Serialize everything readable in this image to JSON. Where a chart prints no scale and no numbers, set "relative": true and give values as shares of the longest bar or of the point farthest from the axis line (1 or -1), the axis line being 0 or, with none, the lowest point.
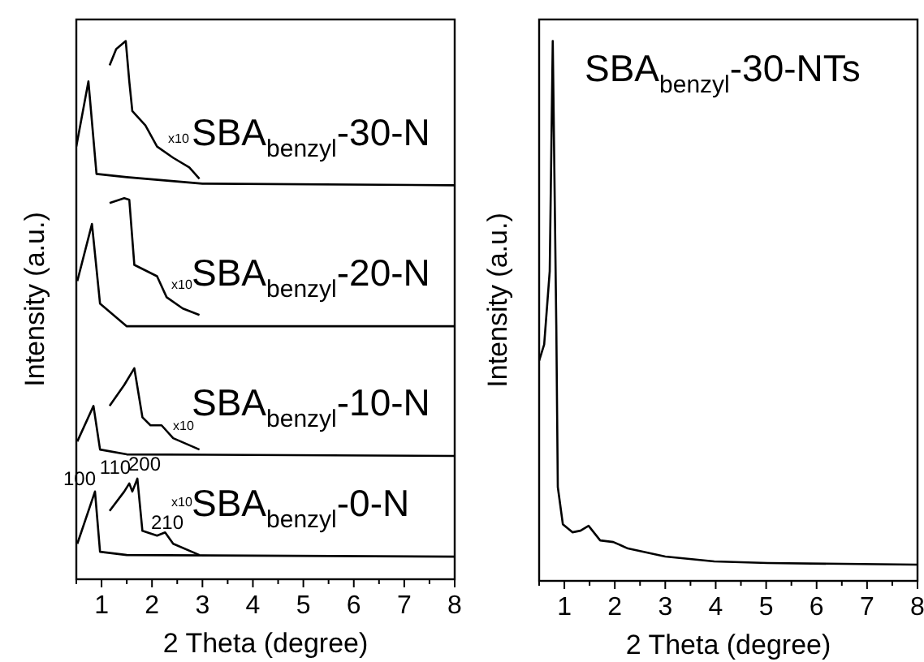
{
  "chart_data": [
    {
      "type": "line",
      "relative": true,
      "xlabel": "2 Theta (degree)",
      "ylabel": "Intensity (a.u.)",
      "xlim": [
        0.5,
        8
      ],
      "xticks": [
        {
          "value": 0.5,
          "label": null
        },
        1,
        {
          "value": 1.5,
          "label": null
        },
        2,
        {
          "value": 2.5,
          "label": null
        },
        3,
        {
          "value": 3.5,
          "label": null
        },
        4,
        {
          "value": 4.5,
          "label": null
        },
        5,
        {
          "value": 5.5,
          "label": null
        },
        6,
        {
          "value": 6.5,
          "label": null
        },
        7,
        {
          "value": 7.5,
          "label": null
        },
        8
      ],
      "tick_labels": "x",
      "legend": false,
      "grid": false,
      "marker": "none",
      "line_style": "solid",
      "series": [
        {
          "name": "SBA$_{benzyl}$-30-N",
          "color": "#000000",
          "x": [
            0.5,
            0.74,
            0.9,
            1.5,
            3,
            8
          ],
          "values": [
            0.804,
            0.925,
            0.753,
            0.747,
            0.735,
            0.732
          ]
        },
        {
          "color": "#000000",
          "x": [
            1.16,
            1.29,
            1.48,
            1.55,
            1.61,
            1.87,
            2.1,
            2.42,
            2.74,
            2.94
          ],
          "values": [
            0.955,
            0.985,
            1,
            0.925,
            0.87,
            0.843,
            0.804,
            0.783,
            0.765,
            0.744
          ]
        },
        {
          "name": "SBA$_{benzyl}$-20-N",
          "color": "#000000",
          "x": [
            0.52,
            0.81,
            0.97,
            1.5,
            8
          ],
          "values": [
            0.554,
            0.66,
            0.512,
            0.47,
            0.47
          ]
        },
        {
          "color": "#000000",
          "x": [
            1.16,
            1.45,
            1.55,
            1.65,
            2.1,
            2.29,
            2.61,
            2.94
          ],
          "values": [
            0.699,
            0.708,
            0.705,
            0.584,
            0.563,
            0.524,
            0.503,
            0.491
          ]
        },
        {
          "name": "SBA$_{benzyl}$-10-N",
          "color": "#000000",
          "x": [
            0.52,
            0.84,
            0.97,
            1.5,
            8
          ],
          "values": [
            0.256,
            0.322,
            0.241,
            0.232,
            0.229
          ]
        },
        {
          "color": "#000000",
          "x": [
            1.16,
            1.45,
            1.65,
            1.81,
            1.97,
            2.19,
            2.42,
            2.94
          ],
          "values": [
            0.322,
            0.361,
            0.392,
            0.301,
            0.286,
            0.286,
            0.262,
            0.241
          ]
        },
        {
          "name": "SBA$_{benzyl}$-0-N",
          "color": "#000000",
          "x": [
            0.52,
            0.87,
            0.97,
            1.5,
            8
          ],
          "values": [
            0.066,
            0.163,
            0.051,
            0.045,
            0.042
          ]
        },
        {
          "color": "#000000",
          "x": [
            1.16,
            1.45,
            1.55,
            1.61,
            1.71,
            1.81,
            2.1,
            2.26,
            2.42,
            2.94
          ],
          "values": [
            0.127,
            0.163,
            0.178,
            0.163,
            0.187,
            0.09,
            0.081,
            0.087,
            0.066,
            0.045
          ]
        }
      ],
      "annotations": [
        "100",
        "110",
        "200",
        "210",
        "x10",
        "x10",
        "x10",
        "x10"
      ]
    },
    {
      "type": "line",
      "relative": true,
      "xlabel": "2 Theta (degree)",
      "ylabel": "Intensity (a.u.)",
      "xlim": [
        0.5,
        8
      ],
      "xticks": [
        {
          "value": 0.5,
          "label": null
        },
        1,
        {
          "value": 1.5,
          "label": null
        },
        2,
        {
          "value": 2.5,
          "label": null
        },
        3,
        {
          "value": 3.5,
          "label": null
        },
        4,
        {
          "value": 4.5,
          "label": null
        },
        5,
        {
          "value": 5.5,
          "label": null
        },
        6,
        {
          "value": 6.5,
          "label": null
        },
        7,
        {
          "value": 7.5,
          "label": null
        },
        8
      ],
      "tick_labels": "x",
      "legend": false,
      "grid": false,
      "marker": "none",
      "line_style": "solid",
      "series": [
        {
          "name": "SBA$_{benzyl}$-30-NTs",
          "color": "#000000",
          "x": [
            0.5,
            0.6,
            0.71,
            0.77,
            0.84,
            0.87,
            0.97,
            1.16,
            1.32,
            1.48,
            1.71,
            1.97,
            2.26,
            3,
            3.97,
            5.03,
            8
          ],
          "values": [
            0.408,
            0.438,
            0.574,
            1,
            0.474,
            0.174,
            0.105,
            0.09,
            0.093,
            0.102,
            0.075,
            0.072,
            0.06,
            0.045,
            0.036,
            0.033,
            0.03
          ]
        }
      ]
    }
  ]
}
